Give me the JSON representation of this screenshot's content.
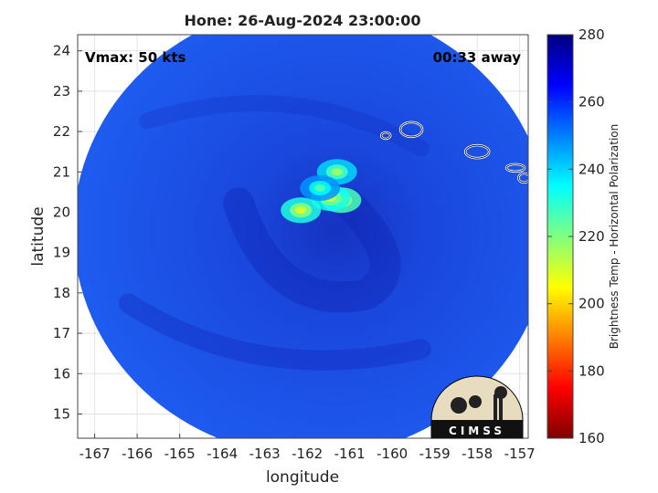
{
  "chart_data": {
    "type": "heatmap",
    "title": "Hone: 26-Aug-2024 23:00:00",
    "xlabel": "longitude",
    "ylabel": "latitude",
    "xlim": [
      -167.4,
      -156.8
    ],
    "ylim": [
      14.4,
      24.4
    ],
    "xticks": [
      -167,
      -166,
      -165,
      -164,
      -163,
      -162,
      -161,
      -160,
      -159,
      -158,
      -157
    ],
    "yticks": [
      15,
      16,
      17,
      18,
      19,
      20,
      21,
      22,
      23,
      24
    ],
    "grid": true,
    "annotations": {
      "vmax": "Vmax: 50 kts",
      "time_offset": "00:33 away"
    },
    "colorbar": {
      "label": "Brightness Temp - Horizontal Polarization",
      "range": [
        160,
        280
      ],
      "ticks": [
        160,
        180,
        200,
        220,
        240,
        260,
        280
      ],
      "colormap": "jet"
    },
    "swath": {
      "center_lon": -161.9,
      "center_lat": 19.55,
      "radius_deg": 5.6
    },
    "cold_cells": [
      {
        "lon": -161.2,
        "lat": 20.3,
        "bt": 205
      },
      {
        "lon": -161.45,
        "lat": 20.35,
        "bt": 212
      },
      {
        "lon": -161.3,
        "lat": 21.0,
        "bt": 218
      },
      {
        "lon": -162.15,
        "lat": 20.05,
        "bt": 210
      },
      {
        "lon": -161.7,
        "lat": 20.6,
        "bt": 226
      }
    ],
    "logo_text": "CIMSS"
  },
  "colors": {
    "background_bt": "#1a4fe6",
    "deep_blue": "#1a2dc8",
    "coastline": "#ffffff"
  }
}
